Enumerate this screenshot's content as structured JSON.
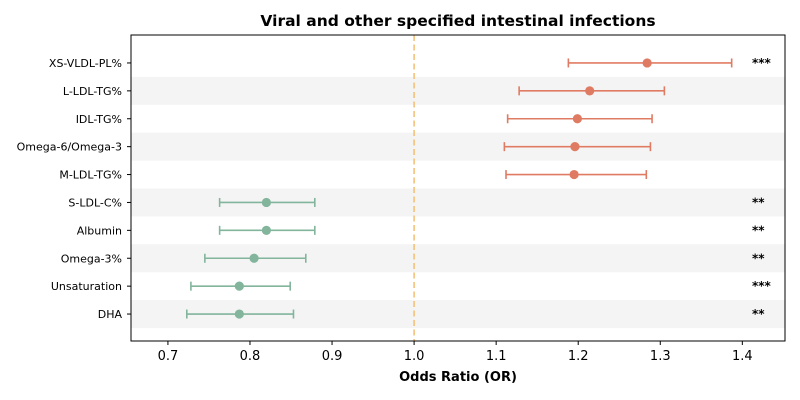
{
  "chart_data": {
    "type": "forest",
    "title": "Viral and other specified intestinal infections",
    "xlabel": "Odds Ratio (OR)",
    "xlim": [
      0.655,
      1.452
    ],
    "xticks": [
      0.7,
      0.8,
      0.9,
      1.0,
      1.1,
      1.2,
      1.3,
      1.4
    ],
    "reference_line": 1.0,
    "reference_color": "#f4c27a",
    "colors": {
      "positive": "#e07b63",
      "negative": "#82b59c"
    },
    "band_color": "#f4f4f4",
    "rows": [
      {
        "label": "XS-VLDL-PL%",
        "or": 1.284,
        "lower": 1.188,
        "upper": 1.387,
        "sig": "***"
      },
      {
        "label": "L-LDL-TG%",
        "or": 1.214,
        "lower": 1.128,
        "upper": 1.305,
        "sig": ""
      },
      {
        "label": "IDL-TG%",
        "or": 1.199,
        "lower": 1.114,
        "upper": 1.29,
        "sig": ""
      },
      {
        "label": "Omega-6/Omega-3",
        "or": 1.196,
        "lower": 1.11,
        "upper": 1.288,
        "sig": ""
      },
      {
        "label": "M-LDL-TG%",
        "or": 1.195,
        "lower": 1.112,
        "upper": 1.283,
        "sig": ""
      },
      {
        "label": "S-LDL-C%",
        "or": 0.82,
        "lower": 0.763,
        "upper": 0.879,
        "sig": "**"
      },
      {
        "label": "Albumin",
        "or": 0.82,
        "lower": 0.763,
        "upper": 0.879,
        "sig": "**"
      },
      {
        "label": "Omega-3%",
        "or": 0.805,
        "lower": 0.745,
        "upper": 0.868,
        "sig": "**"
      },
      {
        "label": "Unsaturation",
        "or": 0.787,
        "lower": 0.728,
        "upper": 0.849,
        "sig": "***"
      },
      {
        "label": "DHA",
        "or": 0.787,
        "lower": 0.723,
        "upper": 0.853,
        "sig": "**"
      }
    ]
  }
}
